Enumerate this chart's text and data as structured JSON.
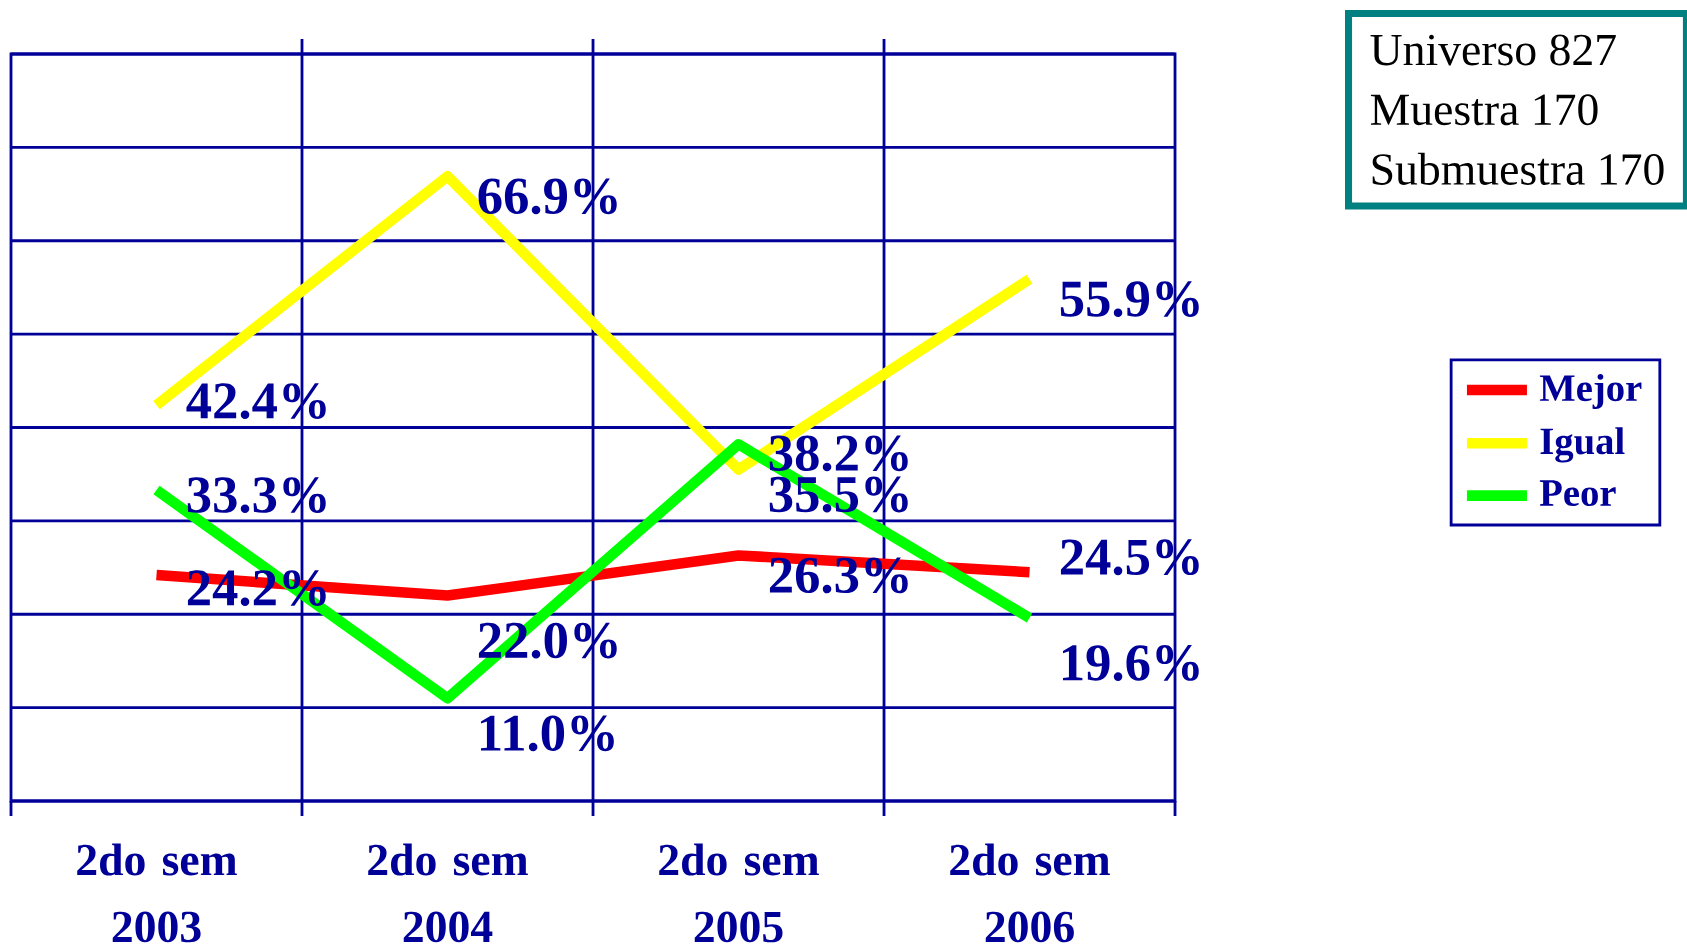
{
  "chart_data": {
    "type": "line",
    "categories": [
      "2do sem 2003",
      "2do sem 2004",
      "2do sem 2005",
      "2do sem 2006"
    ],
    "series": [
      {
        "name": "Mejor",
        "color": "#ff0000",
        "values": [
          24.2,
          22.0,
          26.3,
          24.5
        ],
        "value_labels": [
          "24.2%",
          "22.0%",
          "26.3%",
          "24.5%"
        ]
      },
      {
        "name": "Igual",
        "color": "#ffff00",
        "values": [
          42.4,
          66.9,
          35.5,
          55.9
        ],
        "value_labels": [
          "42.4%",
          "66.9%",
          "35.5%",
          "55.9%"
        ]
      },
      {
        "name": "Peor",
        "color": "#00ff00",
        "values": [
          33.3,
          11.0,
          38.2,
          19.6
        ],
        "value_labels": [
          "33.3%",
          "11.0%",
          "38.2%",
          "19.6%"
        ]
      }
    ],
    "ylim": [
      0,
      80
    ],
    "yticks": [
      {
        "value": 0,
        "label": null
      },
      {
        "value": 10,
        "label": null
      },
      {
        "value": 20,
        "label": null
      },
      {
        "value": 30,
        "label": null
      },
      {
        "value": 40,
        "label": null
      },
      {
        "value": 50,
        "label": null
      },
      {
        "value": 60,
        "label": null
      },
      {
        "value": 70,
        "label": null
      },
      {
        "value": 80,
        "label": null
      }
    ],
    "tick_labels": "x",
    "grid": true,
    "legend": "right",
    "marker": "none",
    "line_style": "solid",
    "annotations": [
      "Universo 827",
      "Muestra 170",
      "Submuestra 170"
    ]
  }
}
